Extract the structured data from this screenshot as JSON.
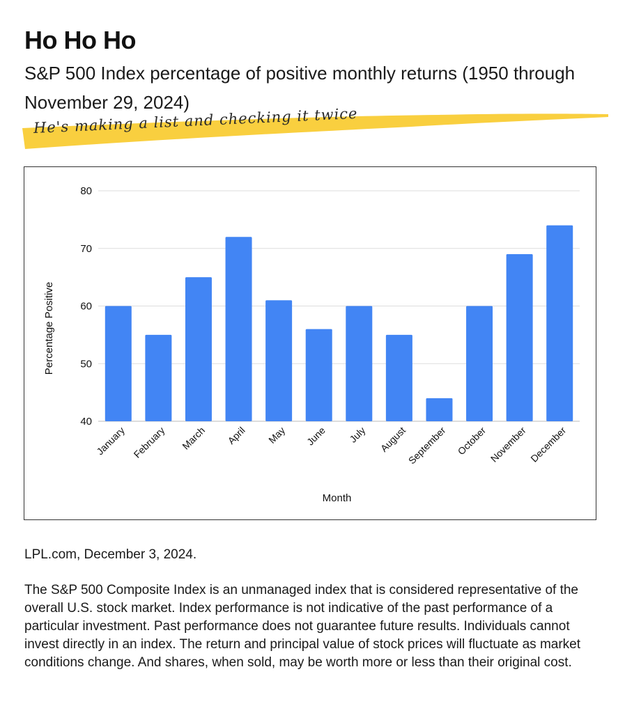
{
  "header": {
    "title": "Ho Ho Ho",
    "subtitle": "S&P 500 Index percentage of positive monthly returns (1950 through November 29, 2024)",
    "tagline": "He's making a list and checking it twice"
  },
  "colors": {
    "bar": "#4285f4",
    "highlight": "#f9cf3f",
    "gridline": "#dddddd",
    "axis_text": "#111111"
  },
  "chart_data": {
    "type": "bar",
    "categories": [
      "January",
      "February",
      "March",
      "April",
      "May",
      "June",
      "July",
      "August",
      "September",
      "October",
      "November",
      "December"
    ],
    "values": [
      60,
      55,
      65,
      72,
      61,
      56,
      60,
      55,
      44,
      60,
      69,
      74
    ],
    "yticks": [
      "80",
      "70",
      "60",
      "50",
      "40"
    ],
    "ylim": [
      40,
      80
    ],
    "xlabel": "Month",
    "ylabel": "Percentage Positive",
    "grid": true,
    "legend": "none"
  },
  "footer": {
    "source": "LPL.com, December 3, 2024.",
    "disclaimer": "The S&P 500 Composite Index is an unmanaged index that is considered representative of the overall U.S. stock market. Index performance is not indicative of the past performance of a particular investment. Past performance does not guarantee future results. Individuals cannot invest directly in an index. The return and principal value of stock prices will fluctuate as market conditions change. And shares, when sold, may be worth more or less than their original cost."
  }
}
